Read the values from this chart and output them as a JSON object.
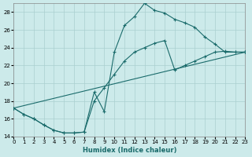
{
  "xlabel": "Humidex (Indice chaleur)",
  "bg_color": "#cceaea",
  "grid_color": "#aacfcf",
  "line_color": "#1a6b6b",
  "xlim": [
    0,
    23
  ],
  "ylim": [
    14,
    29
  ],
  "xticks": [
    0,
    1,
    2,
    3,
    4,
    5,
    6,
    7,
    8,
    9,
    10,
    11,
    12,
    13,
    14,
    15,
    16,
    17,
    18,
    19,
    20,
    21,
    22,
    23
  ],
  "yticks": [
    14,
    16,
    18,
    20,
    22,
    24,
    26,
    28
  ],
  "line1_x": [
    0,
    1,
    2,
    3,
    4,
    5,
    6,
    7,
    8,
    9,
    10,
    11,
    12,
    13,
    14,
    15,
    16,
    17,
    18,
    19,
    20,
    21,
    22,
    23
  ],
  "line1_y": [
    17.2,
    16.5,
    16.0,
    15.3,
    14.7,
    14.4,
    14.4,
    14.5,
    19.0,
    16.8,
    23.5,
    26.5,
    27.5,
    29.0,
    28.2,
    27.9,
    27.2,
    26.8,
    26.3,
    25.2,
    24.4,
    23.5,
    23.5,
    23.5
  ],
  "line2_x": [
    0,
    1,
    2,
    3,
    4,
    5,
    6,
    7,
    8,
    9,
    10,
    11,
    12,
    13,
    14,
    15,
    16,
    17,
    18,
    19,
    20,
    21,
    22,
    23
  ],
  "line2_y": [
    17.2,
    16.5,
    16.0,
    15.3,
    14.7,
    14.4,
    14.4,
    14.5,
    18.0,
    19.5,
    21.0,
    22.5,
    23.5,
    24.0,
    24.5,
    24.8,
    21.5,
    22.0,
    22.5,
    23.0,
    23.5,
    23.6,
    23.5,
    23.5
  ],
  "line3_x": [
    0,
    23
  ],
  "line3_y": [
    17.2,
    23.5
  ]
}
